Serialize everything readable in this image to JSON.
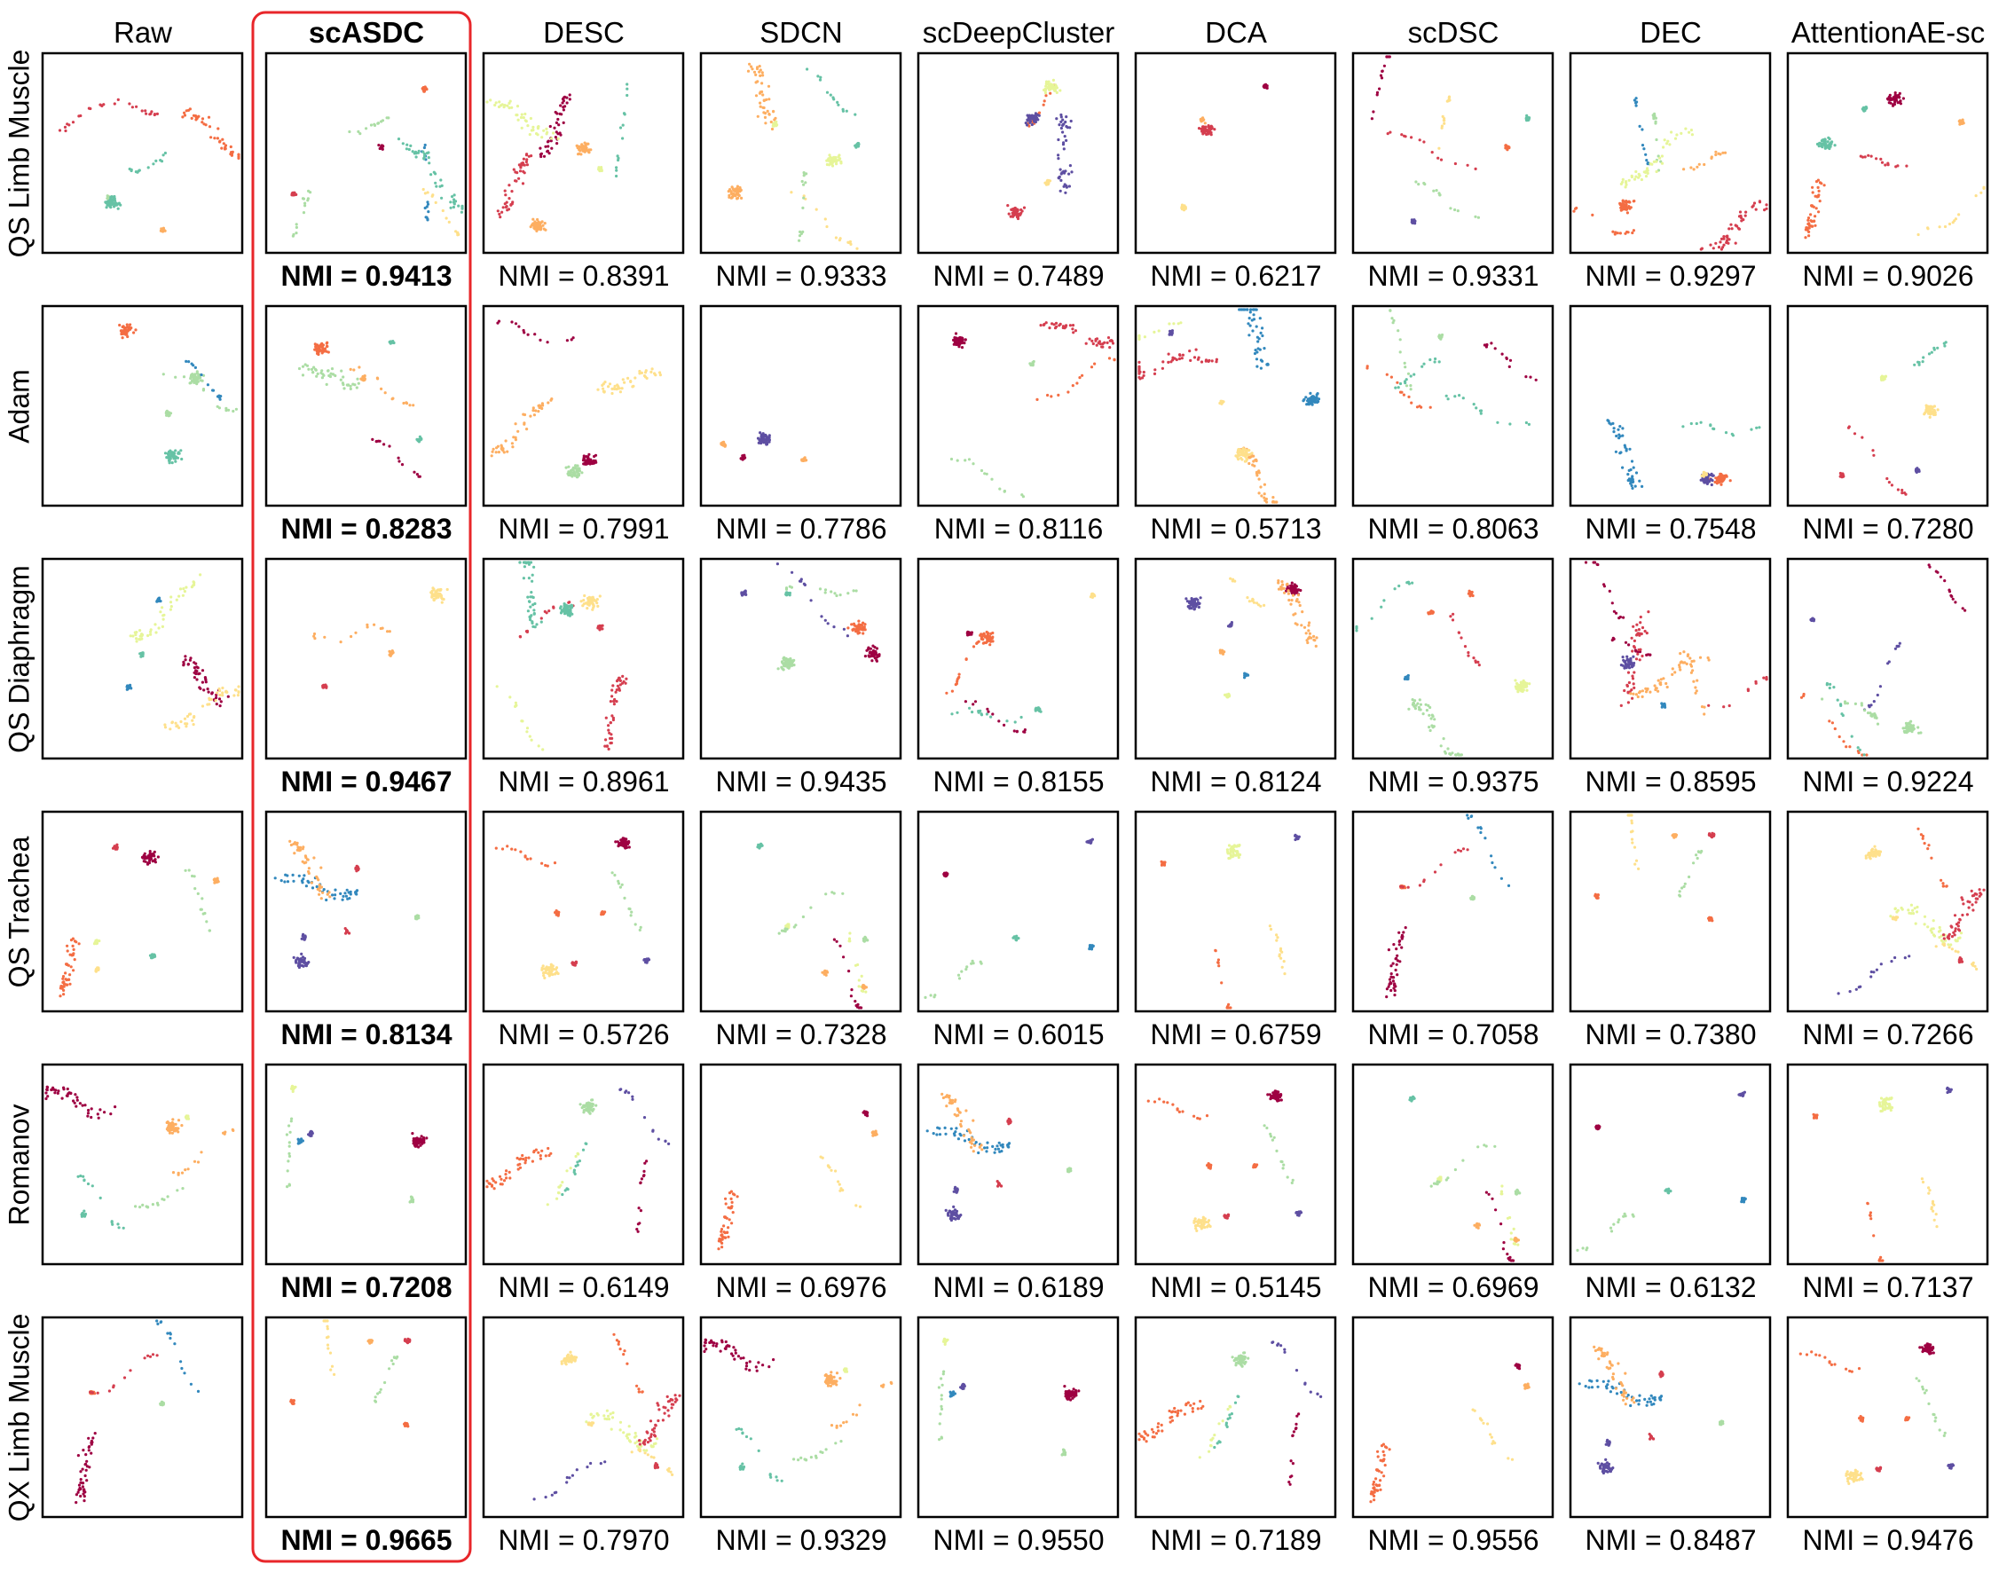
{
  "chart_data": {
    "type": "scatter",
    "columns": [
      "Raw",
      "scASDC",
      "DESC",
      "SDCN",
      "scDeepCluster",
      "DCA",
      "scDSC",
      "DEC",
      "AttentionAE-sc"
    ],
    "highlight_column": "scASDC",
    "highlight_color": "#e8262a",
    "rows": [
      {
        "dataset": "QS Limb Muscle",
        "nmi": [
          "0.9413",
          "0.8391",
          "0.9333",
          "0.7489",
          "0.6217",
          "0.9331",
          "0.9297",
          "0.9026"
        ]
      },
      {
        "dataset": "Adam",
        "nmi": [
          "0.8283",
          "0.7991",
          "0.7786",
          "0.8116",
          "0.5713",
          "0.8063",
          "0.7548",
          "0.7280"
        ]
      },
      {
        "dataset": "QS Diaphragm",
        "nmi": [
          "0.9467",
          "0.8961",
          "0.9435",
          "0.8155",
          "0.8124",
          "0.9375",
          "0.8595",
          "0.9224"
        ]
      },
      {
        "dataset": "QS Trachea",
        "nmi": [
          "0.8134",
          "0.5726",
          "0.7328",
          "0.6015",
          "0.6759",
          "0.7058",
          "0.7380",
          "0.7266"
        ]
      },
      {
        "dataset": "Romanov",
        "nmi": [
          "0.7208",
          "0.6149",
          "0.6976",
          "0.6189",
          "0.5145",
          "0.6969",
          "0.6132",
          "0.7137"
        ]
      },
      {
        "dataset": "QX Limb Muscle",
        "nmi": [
          "0.9665",
          "0.7970",
          "0.9329",
          "0.9550",
          "0.7189",
          "0.9556",
          "0.8487",
          "0.9476"
        ]
      }
    ],
    "nmi_prefix": "NMI = ",
    "palette": [
      "#9e0142",
      "#d53e4f",
      "#f46d43",
      "#fdae61",
      "#fee08b",
      "#e6f598",
      "#abdda4",
      "#66c2a5",
      "#3288bd",
      "#5e4fa2"
    ]
  }
}
